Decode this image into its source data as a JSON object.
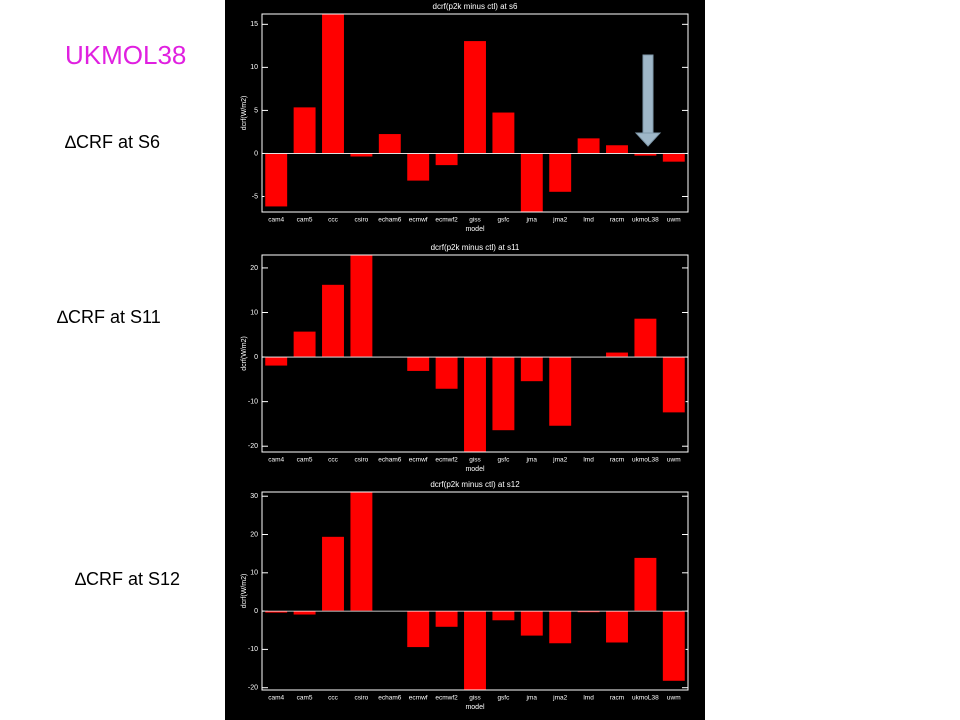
{
  "slide": {
    "title": "UKMOL38",
    "panel_labels": [
      "S6",
      "S11",
      "S12"
    ],
    "side_labels": [
      "∆CRF at S6",
      "∆CRF at S11",
      "∆CRF at S12"
    ]
  },
  "chart_data": [
    {
      "type": "bar",
      "title": "dcrf(p2k minus ctl) at s6",
      "x_label": "model",
      "y_label": "dcrf(W/m2)",
      "color": "#ff0000",
      "categories": [
        "cam4",
        "cam5",
        "ccc",
        "csiro",
        "echam6",
        "ecmwf",
        "ecmwf2",
        "giss",
        "gsfc",
        "jma",
        "jma2",
        "lmd",
        "racm",
        "ukmoL38",
        "uwm"
      ],
      "values": [
        -6.2,
        5.4,
        16.2,
        -0.4,
        2.3,
        -3.2,
        -1.4,
        13.1,
        4.8,
        -6.8,
        -4.5,
        1.8,
        1.0,
        -0.3,
        -1.0
      ],
      "ylim": [
        -6.8,
        16.2
      ],
      "yticks": [
        -5,
        0,
        5,
        10,
        15
      ]
    },
    {
      "type": "bar",
      "title": "dcrf(p2k minus ctl) at s11",
      "x_label": "model",
      "y_label": "dcrf(W/m2)",
      "color": "#ff0000",
      "categories": [
        "cam4",
        "cam5",
        "ccc",
        "csiro",
        "echam6",
        "ecmwf",
        "ecmwf2",
        "giss",
        "gsfc",
        "jma",
        "jma2",
        "lmd",
        "racm",
        "ukmoL38",
        "uwm"
      ],
      "values": [
        -2.0,
        5.8,
        16.3,
        22.9,
        0.2,
        -3.2,
        -7.2,
        -21.3,
        -16.5,
        -5.5,
        -15.5,
        0.1,
        1.1,
        8.7,
        -12.5
      ],
      "ylim": [
        -21.3,
        22.9
      ],
      "yticks": [
        -20,
        -10,
        0,
        10,
        20
      ]
    },
    {
      "type": "bar",
      "title": "dcrf(p2k minus ctl) at s12",
      "x_label": "model",
      "y_label": "dcrf(W/m2)",
      "color": "#ff0000",
      "categories": [
        "cam4",
        "cam5",
        "ccc",
        "csiro",
        "echam6",
        "ecmwf",
        "ecmwf2",
        "giss",
        "gsfc",
        "jma",
        "jma2",
        "lmd",
        "racm",
        "ukmoL38",
        "uwm"
      ],
      "values": [
        -0.5,
        -1.0,
        19.5,
        31.1,
        0.0,
        -9.5,
        -4.2,
        -20.6,
        -2.5,
        -6.5,
        -8.5,
        -0.4,
        -8.3,
        14.0,
        -18.3
      ],
      "ylim": [
        -20.6,
        31.1
      ],
      "yticks": [
        -20,
        -10,
        0,
        10,
        20,
        30
      ]
    }
  ]
}
